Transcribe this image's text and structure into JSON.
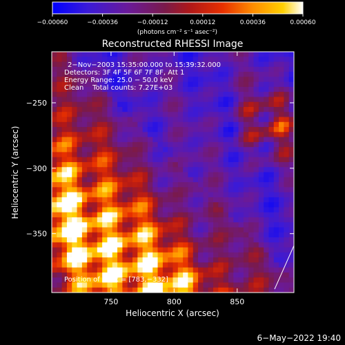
{
  "chart_data": {
    "type": "heatmap",
    "title": "Reconstructed RHESSI Image",
    "xlabel": "Heliocentric X (arcsec)",
    "ylabel": "Heliocentric Y (arcsec)",
    "xlim": [
      703,
      895
    ],
    "ylim": [
      -395,
      -211
    ],
    "xticks": [
      {
        "value": 750,
        "label": "750"
      },
      {
        "value": 800,
        "label": "800"
      },
      {
        "value": 850,
        "label": "850"
      }
    ],
    "yticks": [
      {
        "value": -250,
        "label": "−250"
      },
      {
        "value": -300,
        "label": "−300"
      },
      {
        "value": -350,
        "label": "−350"
      }
    ],
    "colorbar": {
      "range": [
        -0.0006,
        0.0006
      ],
      "unit_label": "(photons cm⁻² s⁻¹ asec⁻²)",
      "ticks": [
        {
          "value": -0.0006,
          "label": "−0.00060"
        },
        {
          "value": -0.00036,
          "label": "−0.00036"
        },
        {
          "value": -0.00012,
          "label": "−0.00012"
        },
        {
          "value": 0.00012,
          "label": "0.00012"
        },
        {
          "value": 0.00036,
          "label": "0.00036"
        },
        {
          "value": 0.0006,
          "label": "0.00060"
        }
      ]
    },
    "info_lines": [
      "2−Nov−2003 15:35:00.000 to 15:39:32.000",
      "Detectors: 3F 4F 5F 6F 7F 8F, Att 1",
      "Energy Range: 25.0 − 50.0 keV",
      "Clean    Total counts: 7.27E+03"
    ],
    "peak_label": "Position of Peak = [783,−332]",
    "peak_position": [
      783,
      -332
    ],
    "total_counts": 7270,
    "energy_range_kev": [
      25.0,
      50.0
    ],
    "grid": false,
    "colors": {
      "background": "#000000",
      "foreground": "#ffffff",
      "colormap": [
        "#0000ff",
        "#5a1aa8",
        "#6a1a7a",
        "#b01818",
        "#e83000",
        "#ff8c00",
        "#ffd000",
        "#ffffff"
      ]
    }
  },
  "footer": {
    "timestamp": "6−May−2022 19:40"
  }
}
